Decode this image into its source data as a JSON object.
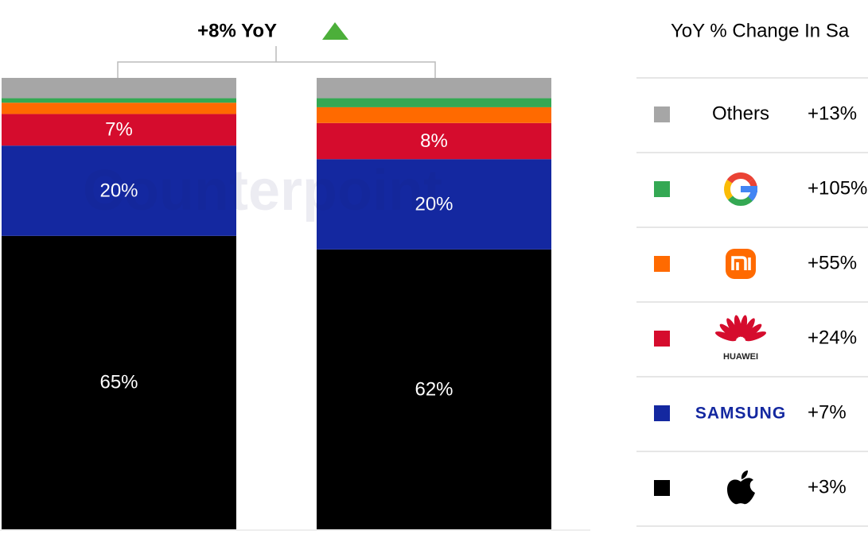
{
  "chart_data": {
    "type": "stacked_bar",
    "annotation": "+8% YoY",
    "legend_title": "YoY % Change In Sa",
    "watermark": "Counterpoint",
    "categories": [
      null,
      null
    ],
    "ylim": [
      0,
      100
    ],
    "series": [
      {
        "color": "#000000",
        "values": [
          65,
          62
        ],
        "value_labels": [
          "65%",
          "62%"
        ],
        "yoy": 3,
        "yoy_label": "+3%"
      },
      {
        "name": "SAMSUNG",
        "color": "#1428a0",
        "values": [
          20,
          20
        ],
        "value_labels": [
          "20%",
          "20%"
        ],
        "yoy": 7,
        "yoy_label": "+7%"
      },
      {
        "name": "HUAWEI",
        "color": "#d50c2d",
        "values": [
          7,
          8
        ],
        "value_labels": [
          "7%",
          "8%"
        ],
        "yoy": 24,
        "yoy_label": "+24%"
      },
      {
        "color": "#ff6a00",
        "values": [
          2.5,
          3.5
        ],
        "yoy": 55,
        "yoy_label": "+55%"
      },
      {
        "color": "#34a853",
        "values": [
          1,
          2
        ],
        "yoy": 105,
        "yoy_label": "+105%"
      },
      {
        "name": "Others",
        "color": "#a6a6a6",
        "values": [
          4.5,
          4.5
        ],
        "yoy": 13,
        "yoy_label": "+13%"
      }
    ]
  }
}
